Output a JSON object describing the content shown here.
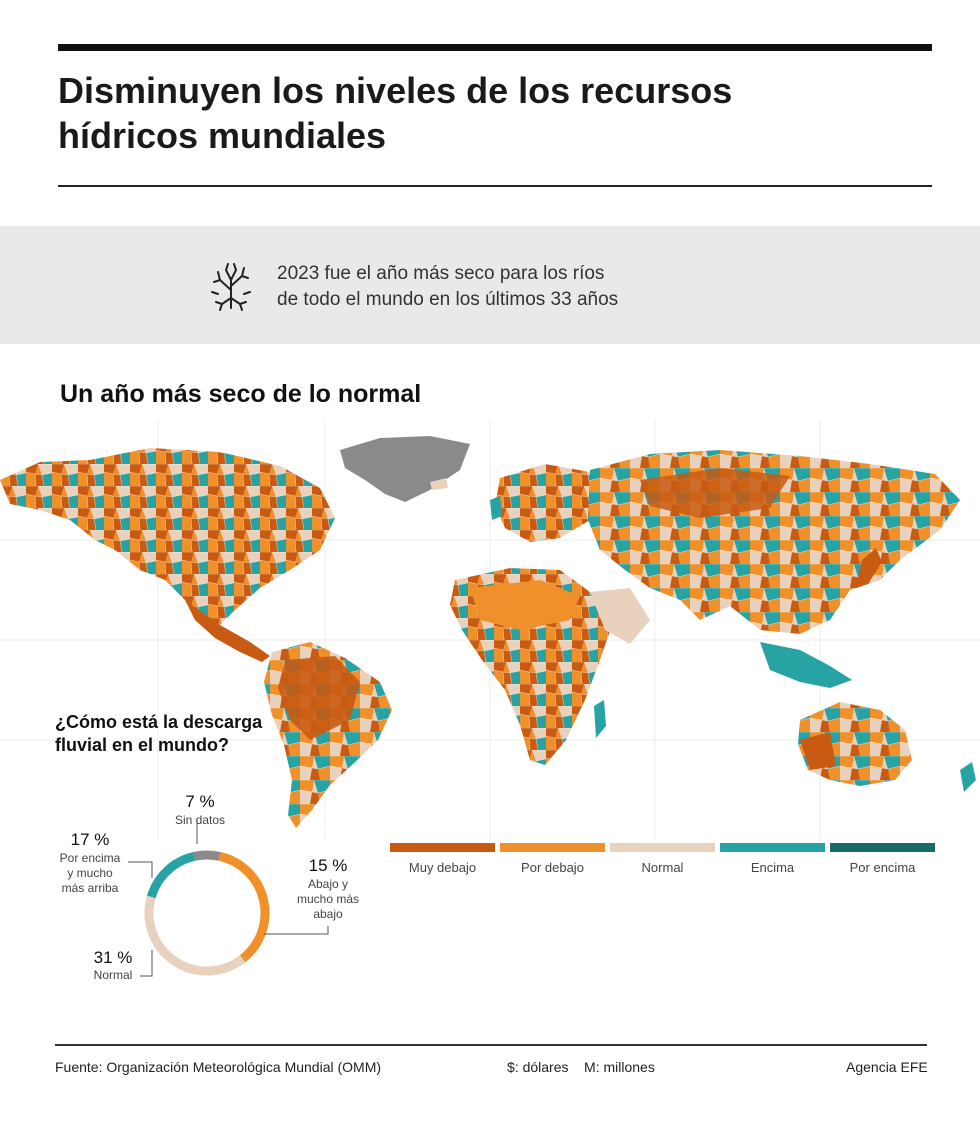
{
  "header": {
    "title": "Disminuyen los niveles de los recursos hídricos mundiales"
  },
  "info": {
    "icon": "dry-tree-icon",
    "line1": "2023 fue el año más seco para los ríos",
    "line2": "de todo el mundo en los últimos 33 años"
  },
  "map": {
    "title": "Un año más seco de lo normal"
  },
  "legend": {
    "items": [
      {
        "label": "Muy debajo",
        "color": "#c85a12"
      },
      {
        "label": "Por debajo",
        "color": "#f0902a"
      },
      {
        "label": "Normal",
        "color": "#e8d2bd"
      },
      {
        "label": "Encima",
        "color": "#27a3a3"
      },
      {
        "label": "Por encima",
        "color": "#1a6a66"
      }
    ]
  },
  "donut": {
    "title_line1": "¿Cómo está la descarga",
    "title_line2": "fluvial en el mundo?",
    "segments": [
      {
        "pct": "7 %",
        "label_lines": [
          "Sin datos"
        ],
        "color": "#8a8a8a"
      },
      {
        "pct": "15 %",
        "label_lines": [
          "Abajo y",
          "mucho más",
          "abajo"
        ],
        "color": "#f0902a"
      },
      {
        "pct": "31 %",
        "label_lines": [
          "Normal"
        ],
        "color": "#e8d2bd"
      },
      {
        "pct": "17 %",
        "label_lines": [
          "Por encima",
          "y mucho",
          "más arriba"
        ],
        "color": "#27a3a3"
      }
    ]
  },
  "footer": {
    "source": "Fuente: Organización Meteorológica Mundial (OMM)",
    "units": "$: dólares    M: millones",
    "agency": "Agencia EFE"
  }
}
